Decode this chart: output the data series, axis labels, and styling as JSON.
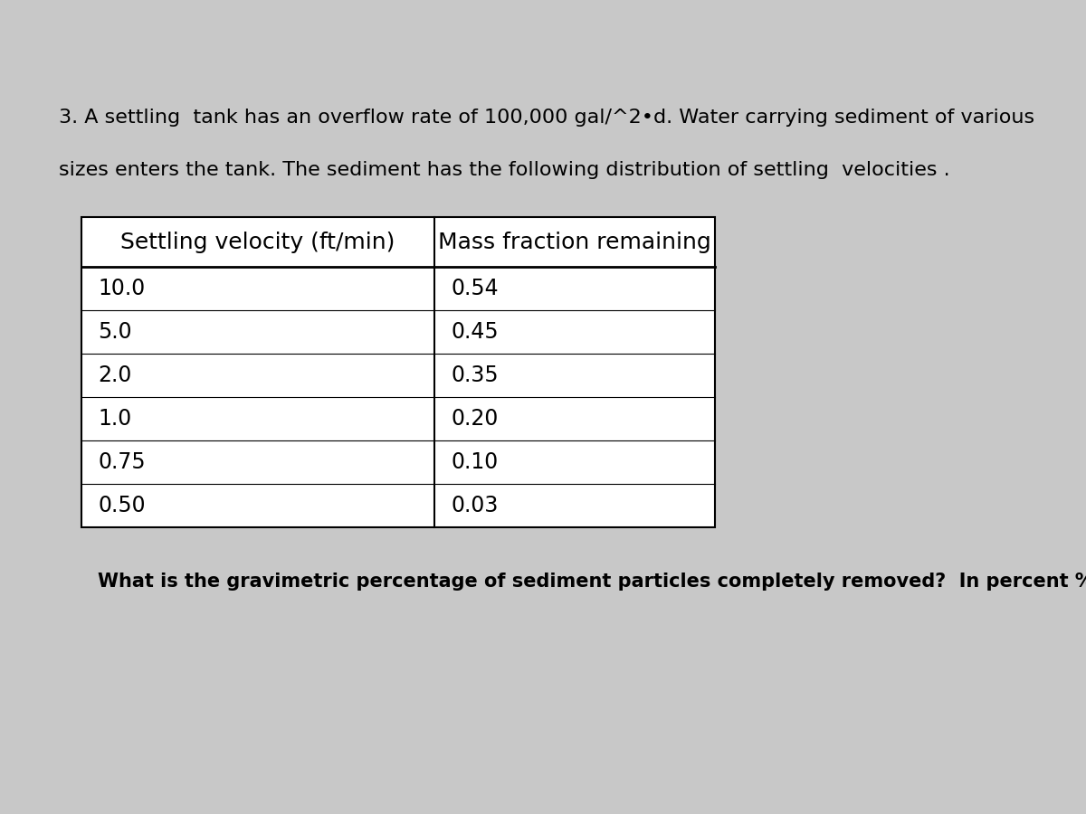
{
  "background_color": "#c8c8c8",
  "table_bg": "#c8c8c8",
  "table_cell_bg": "#d0d0d0",
  "white": "#ffffff",
  "intro_line1": "3. A settling  tank has an overflow rate of 100,000 gal/^2•d. Water carrying sediment of various",
  "intro_line2": "sizes enters the tank. The sediment has the following distribution of settling  velocities .",
  "col_headers": [
    "Settling velocity (ft/min)",
    "Mass fraction remaining"
  ],
  "settling_velocities": [
    "10.0",
    "5.0",
    "2.0",
    "1.0",
    "0.75",
    "0.50"
  ],
  "mass_fractions": [
    "0.54",
    "0.45",
    "0.35",
    "0.20",
    "0.10",
    "0.03"
  ],
  "question": "What is the gravimetric percentage of sediment particles completely removed?  In percent %",
  "intro_fontsize": 16,
  "header_fontsize": 18,
  "data_fontsize": 17,
  "question_fontsize": 15
}
